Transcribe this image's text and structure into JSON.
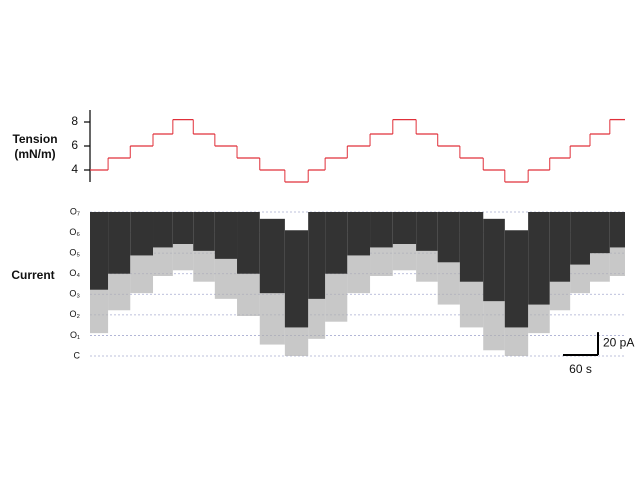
{
  "chart_data": [
    {
      "type": "line",
      "step": "post",
      "ylabel": [
        "Tension",
        "(mN/m)"
      ],
      "color": "#e0303a",
      "x": [
        0,
        31,
        69,
        108,
        142,
        177,
        214,
        252,
        291,
        334,
        374,
        403,
        441,
        480,
        519,
        559,
        596,
        634,
        674,
        711,
        751,
        788,
        823,
        857,
        891
      ],
      "values": [
        4,
        5,
        6,
        7,
        8.2,
        7,
        6,
        5,
        4,
        3,
        4,
        5,
        6,
        7,
        8.2,
        7,
        6,
        5,
        4,
        3,
        4,
        5,
        6,
        7,
        8.2
      ],
      "xlim": [
        0,
        917
      ],
      "ylim": [
        3,
        9
      ],
      "yticks": [
        4,
        6,
        8
      ]
    },
    {
      "type": "range",
      "ylabel": "Current",
      "color": "#333333",
      "extreme_color": "#b0b0b0",
      "x": [
        0,
        31,
        69,
        108,
        142,
        177,
        214,
        252,
        291,
        334,
        374,
        403,
        441,
        480,
        519,
        559,
        596,
        634,
        674,
        711,
        751,
        788,
        823,
        857,
        891
      ],
      "high": [
        126,
        126,
        126,
        126,
        126,
        126,
        126,
        126,
        120,
        110,
        126,
        126,
        126,
        126,
        126,
        126,
        126,
        126,
        120,
        110,
        126,
        126,
        126,
        126,
        126
      ],
      "low": [
        58,
        72,
        88,
        95,
        98,
        92,
        85,
        72,
        55,
        25,
        50,
        72,
        88,
        95,
        98,
        92,
        82,
        65,
        48,
        25,
        45,
        65,
        80,
        90,
        95
      ],
      "extreme_low": [
        20,
        40,
        55,
        70,
        75,
        65,
        50,
        35,
        10,
        0,
        15,
        30,
        55,
        70,
        75,
        65,
        45,
        25,
        5,
        0,
        20,
        40,
        55,
        65,
        70
      ],
      "xlim": [
        0,
        917
      ],
      "ylim": [
        0,
        126
      ],
      "yticks": [
        {
          "value": 0,
          "label": "C"
        },
        {
          "value": 18,
          "label": "O₁"
        },
        {
          "value": 36,
          "label": "O₂"
        },
        {
          "value": 54,
          "label": "O₃"
        },
        {
          "value": 72,
          "label": "O₄"
        },
        {
          "value": 90,
          "label": "O₅"
        },
        {
          "value": 108,
          "label": "O₆"
        },
        {
          "value": 126,
          "label": "O₇"
        }
      ],
      "scale_bar": {
        "x_value": 60,
        "x_label": "60 s",
        "y_value": 20,
        "y_label": "20 pA"
      }
    }
  ]
}
